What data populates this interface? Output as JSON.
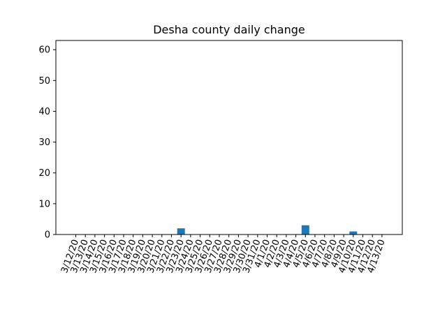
{
  "chart_data": {
    "type": "bar",
    "title": "Desha county daily change",
    "xlabel": "",
    "ylabel": "",
    "ylim": [
      0,
      63
    ],
    "yticks": [
      0,
      10,
      20,
      30,
      40,
      50,
      60
    ],
    "grid": false,
    "bar_color": "#1f77b4",
    "categories": [
      "3/12/20",
      "3/13/20",
      "3/14/20",
      "3/15/20",
      "3/16/20",
      "3/17/20",
      "3/18/20",
      "3/19/20",
      "3/20/20",
      "3/21/20",
      "3/22/20",
      "3/23/20",
      "3/24/20",
      "3/25/20",
      "3/26/20",
      "3/27/20",
      "3/28/20",
      "3/29/20",
      "3/30/20",
      "3/31/20",
      "4/1/20",
      "4/2/20",
      "4/3/20",
      "4/4/20",
      "4/5/20",
      "4/6/20",
      "4/7/20",
      "4/8/20",
      "4/9/20",
      "4/10/20",
      "4/11/20",
      "4/12/20",
      "4/13/20"
    ],
    "values": [
      0,
      0,
      0,
      0,
      0,
      0,
      0,
      0,
      0,
      0,
      0,
      2,
      0,
      0,
      0,
      0,
      0,
      0,
      0,
      0,
      0,
      0,
      0,
      0,
      3,
      0,
      0,
      0,
      0,
      1,
      0,
      0,
      0
    ]
  }
}
